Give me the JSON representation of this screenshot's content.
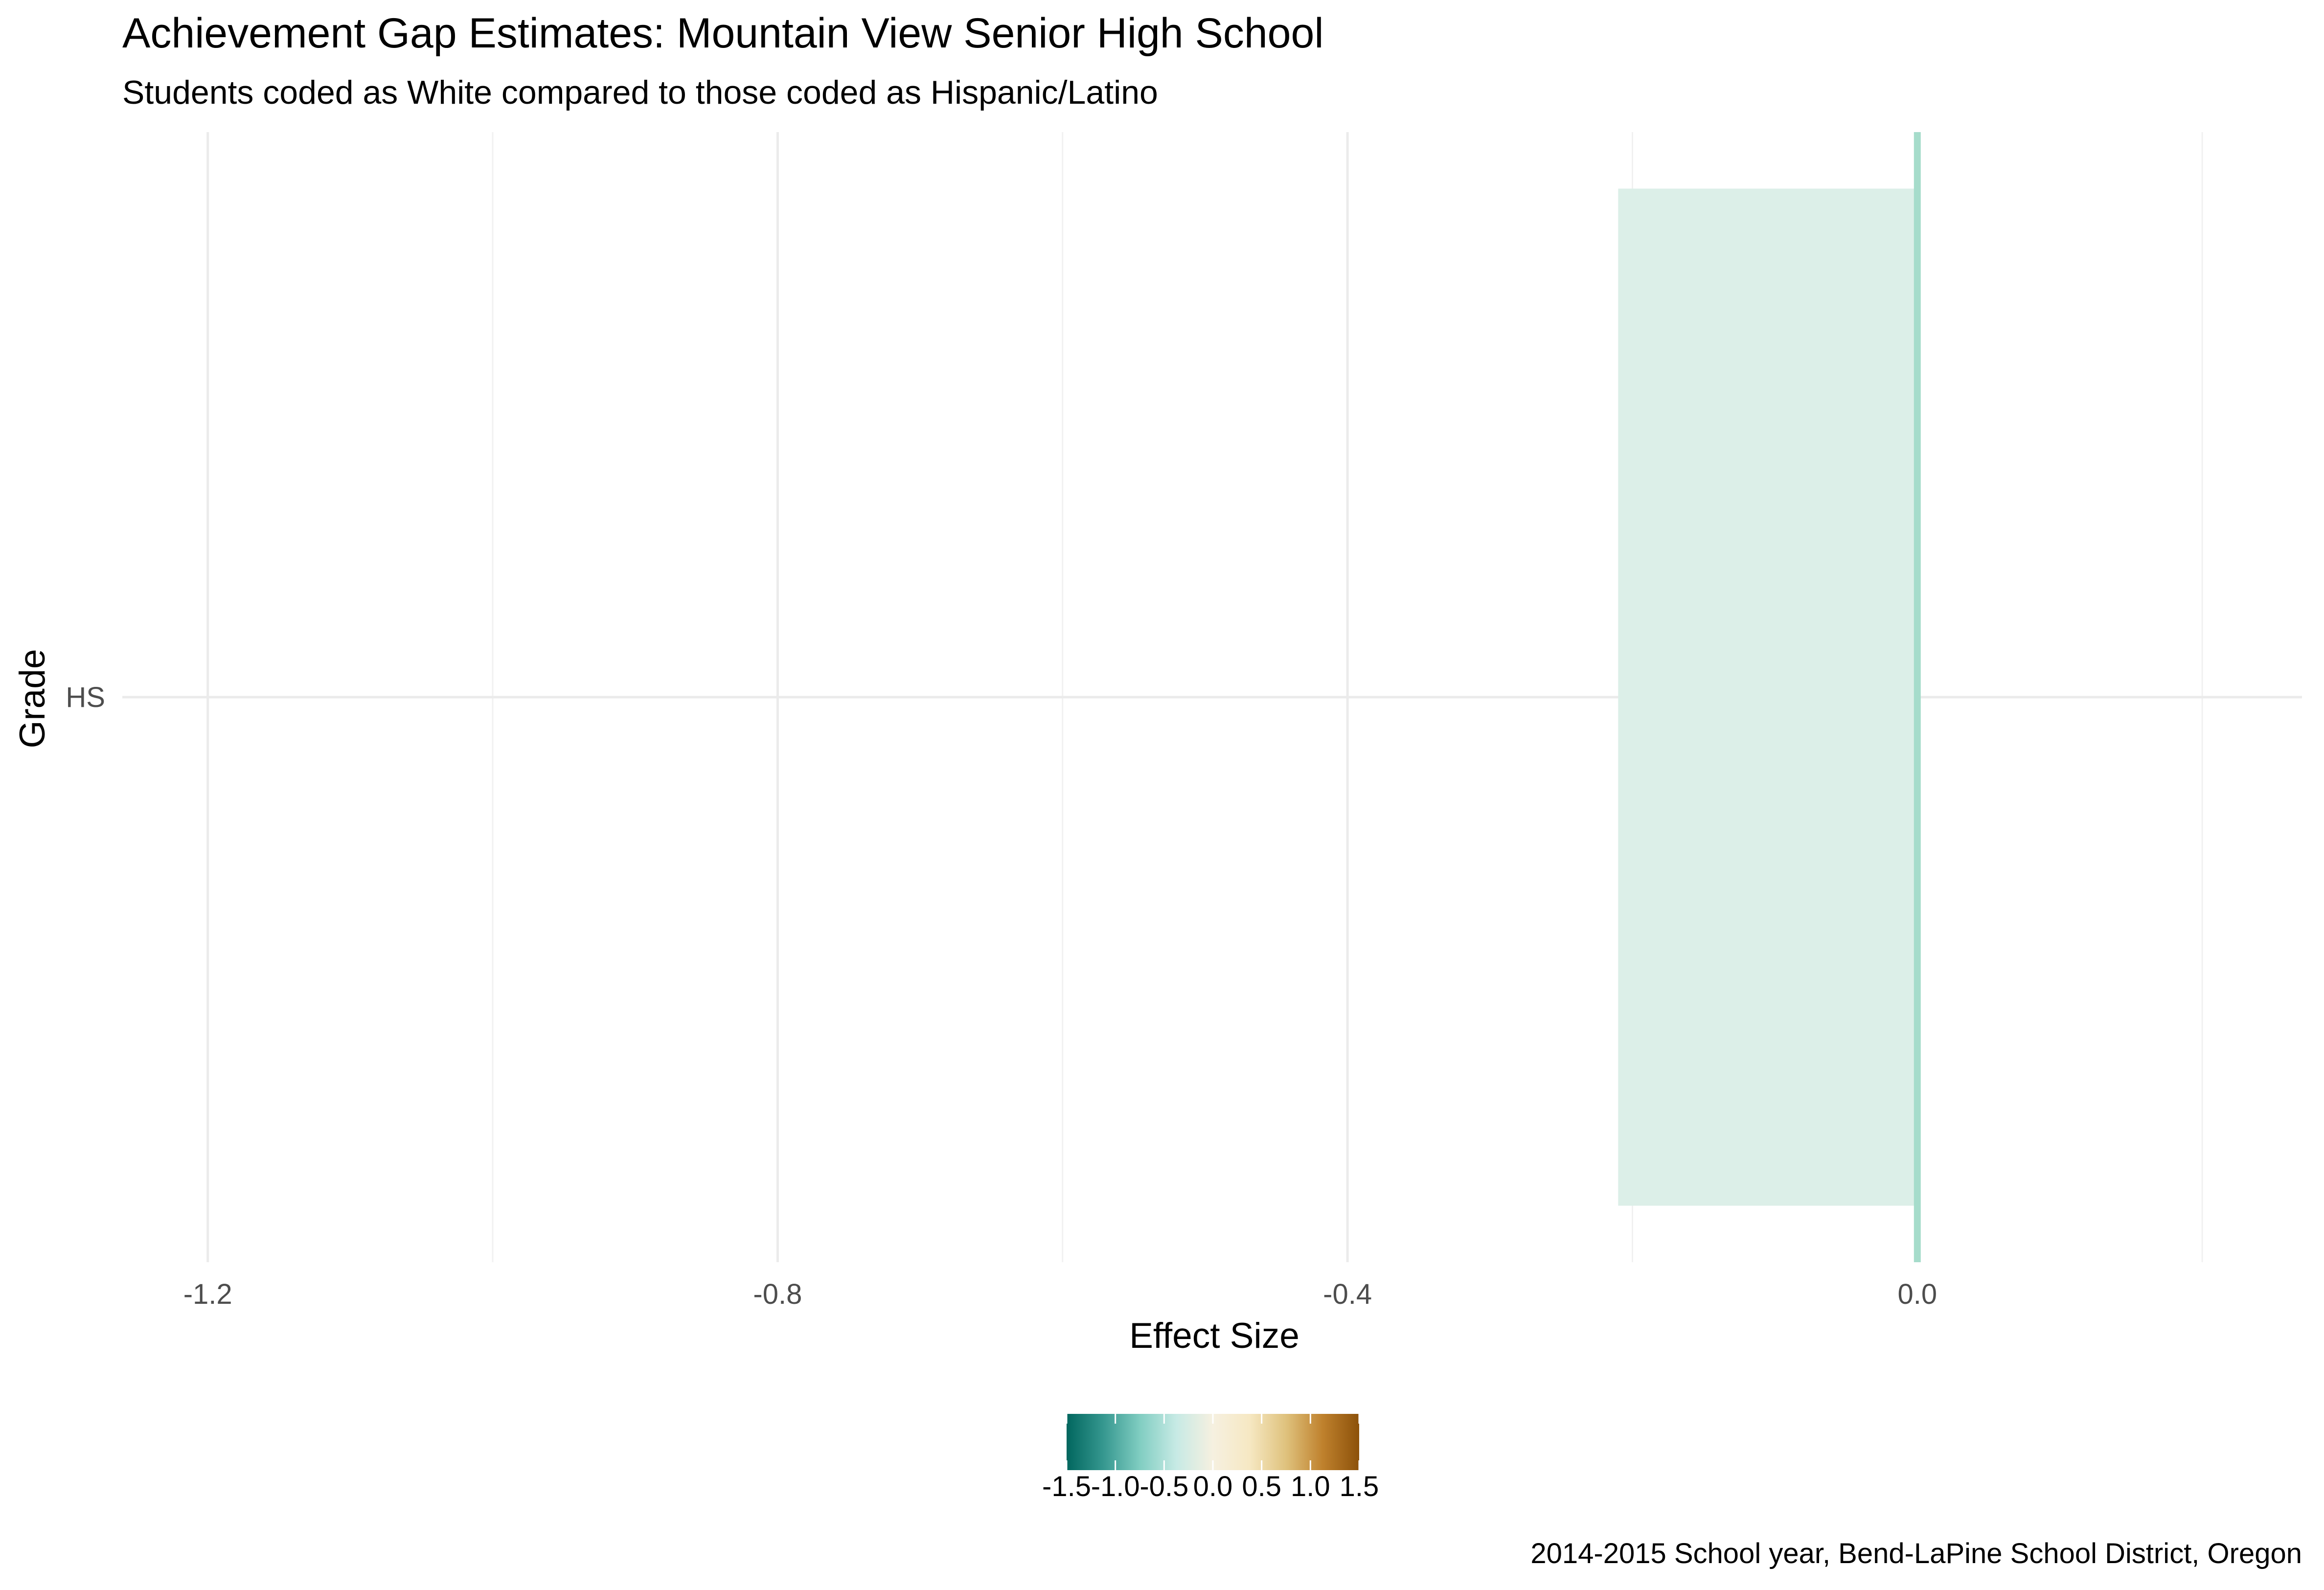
{
  "chart_data": {
    "type": "bar",
    "orientation": "horizontal",
    "title": "Achievement Gap Estimates: Mountain View Senior High School",
    "subtitle": "Students coded as White compared to those coded as Hispanic/Latino",
    "caption": "2014-2015 School year, Bend-LaPine School District, Oregon",
    "xlabel": "Effect Size",
    "ylabel": "Grade",
    "categories": [
      "HS"
    ],
    "values": [
      -0.21
    ],
    "xlim": [
      -1.26,
      0.27
    ],
    "x_ticks": [
      -1.2,
      -0.8,
      -0.4,
      0.0
    ],
    "x_tick_labels": [
      "-1.2",
      "-0.8",
      "-0.4",
      "0.0"
    ],
    "x_minor_ticks": [
      -1.0,
      -0.6,
      -0.2,
      0.2
    ],
    "reference_line": 0.0,
    "grid": true,
    "bar_fill": "#dcefe8",
    "reference_line_color": "#a6dccb",
    "legend": {
      "placement": "bottom",
      "type": "colorbar",
      "range": [
        -1.5,
        1.5
      ],
      "ticks": [
        -1.5,
        -1.0,
        -0.5,
        0.0,
        0.5,
        1.0,
        1.5
      ],
      "tick_labels": [
        "-1.5",
        "-1.0",
        "-0.5",
        "0.0",
        "0.5",
        "1.0",
        "1.5"
      ],
      "colors": [
        "#01665e",
        "#35978f",
        "#80cdc1",
        "#c7eae5",
        "#f6f0e0",
        "#f6e8c3",
        "#dfc27d",
        "#bf812d",
        "#8c510a"
      ]
    }
  }
}
